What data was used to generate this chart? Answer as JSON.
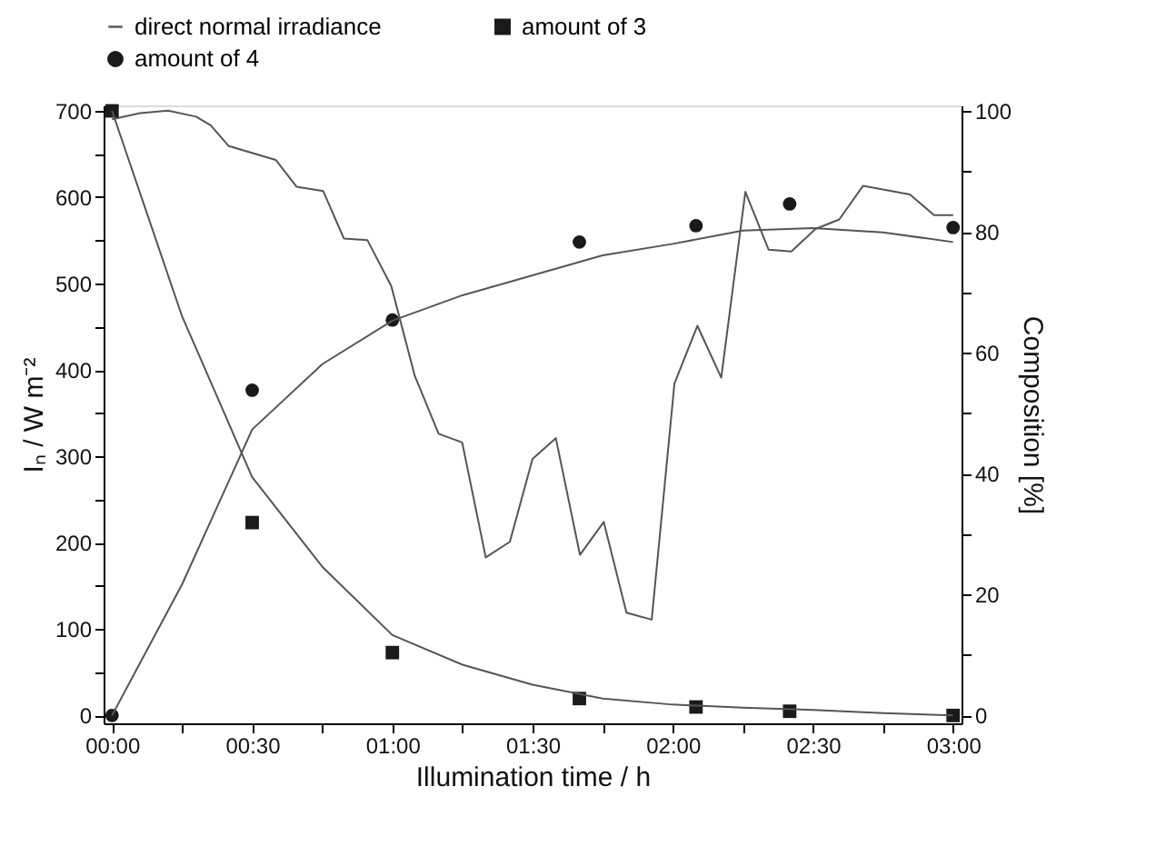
{
  "chart_data": {
    "type": "line",
    "xlabel": "Illumination time / h",
    "ylabel": "Iₙ / W m⁻²",
    "y2label": "Composition [%]",
    "xlim": [
      -0.03,
      3.03
    ],
    "ylim": [
      -9,
      706
    ],
    "y2lim": [
      -1.3,
      100.9
    ],
    "xticks": [
      {
        "value": 0,
        "label": "00:00"
      },
      {
        "value": 0.25,
        "label": null
      },
      {
        "value": 0.5,
        "label": "00:30"
      },
      {
        "value": 0.75,
        "label": null
      },
      {
        "value": 1,
        "label": "01:00"
      },
      {
        "value": 1.25,
        "label": null
      },
      {
        "value": 1.5,
        "label": "01:30"
      },
      {
        "value": 1.75,
        "label": null
      },
      {
        "value": 2,
        "label": "02:00"
      },
      {
        "value": 2.25,
        "label": null
      },
      {
        "value": 2.5,
        "label": "02:30"
      },
      {
        "value": 2.75,
        "label": null
      },
      {
        "value": 3,
        "label": "03:00"
      }
    ],
    "yticks": [
      0,
      {
        "value": 50,
        "label": null
      },
      100,
      {
        "value": 150,
        "label": null
      },
      200,
      {
        "value": 250,
        "label": null
      },
      300,
      {
        "value": 350,
        "label": null
      },
      400,
      {
        "value": 450,
        "label": null
      },
      500,
      {
        "value": 550,
        "label": null
      },
      600,
      {
        "value": 650,
        "label": null
      },
      700
    ],
    "y2ticks": [
      0,
      {
        "value": 10,
        "label": null
      },
      20,
      {
        "value": 30,
        "label": null
      },
      40,
      {
        "value": 50,
        "label": null
      },
      60,
      {
        "value": 70,
        "label": null
      },
      80,
      {
        "value": 90,
        "label": null
      },
      100
    ],
    "grid": false,
    "legend": "top",
    "series": [
      {
        "name": "direct normal irradiance",
        "marker": "none",
        "color": "#555555",
        "x": [
          0,
          0.1,
          0.2,
          0.3,
          0.352,
          0.416,
          0.584,
          0.658,
          0.753,
          0.827,
          0.911,
          0.996,
          1.08,
          1.165,
          1.249,
          1.333,
          1.419,
          1.5,
          1.583,
          1.669,
          1.754,
          1.835,
          1.925,
          2.006,
          2.088,
          2.173,
          2.259,
          2.342,
          2.423,
          2.509,
          2.594,
          2.679,
          2.846,
          2.932,
          3.0
        ],
        "values": [
          690,
          697,
          700,
          693,
          683,
          659,
          643,
          612,
          607,
          552,
          550,
          497,
          393,
          326,
          316,
          183,
          201,
          297,
          321,
          186,
          224,
          119,
          111,
          384,
          451,
          391,
          606,
          539,
          537,
          563,
          574,
          613,
          603,
          579,
          579
        ]
      },
      {
        "name": "amount of 3",
        "type": "scatter",
        "marker": "square",
        "axis": "y2",
        "color": "#1a1a1a",
        "x": [
          0,
          0.5,
          1.0,
          1.667,
          2.083,
          2.417,
          3.0
        ],
        "values": [
          100,
          31.9,
          10.4,
          2.8,
          1.4,
          0.7,
          0
        ]
      },
      {
        "name": "amount of 4",
        "type": "scatter",
        "marker": "circle",
        "axis": "y2",
        "color": "#1a1a1a",
        "x": [
          0,
          0.5,
          1.0,
          1.667,
          2.083,
          2.417,
          3.0
        ],
        "values": [
          0,
          53.8,
          65.4,
          78.3,
          81.0,
          84.6,
          80.7
        ]
      },
      {
        "marker": "none",
        "axis": "y2",
        "color": "#555555",
        "x": [
          0,
          0.25,
          0.5,
          0.75,
          1.0,
          1.25,
          1.5,
          1.75,
          2.0,
          2.25,
          2.5,
          2.75,
          3.0
        ],
        "values": [
          100,
          66,
          39.4,
          24.6,
          13.3,
          8.4,
          5.1,
          2.8,
          1.8,
          1.3,
          0.9,
          0.4,
          0
        ]
      },
      {
        "marker": "none",
        "axis": "y2",
        "color": "#555555",
        "x": [
          0,
          0.25,
          0.5,
          0.75,
          1.0,
          1.25,
          1.5,
          1.75,
          2.0,
          2.25,
          2.5,
          2.75,
          3.0
        ],
        "values": [
          0,
          21.7,
          47.3,
          58.1,
          65.3,
          69.5,
          72.8,
          76.1,
          78.0,
          80.2,
          80.6,
          79.9,
          78.3
        ]
      }
    ]
  }
}
